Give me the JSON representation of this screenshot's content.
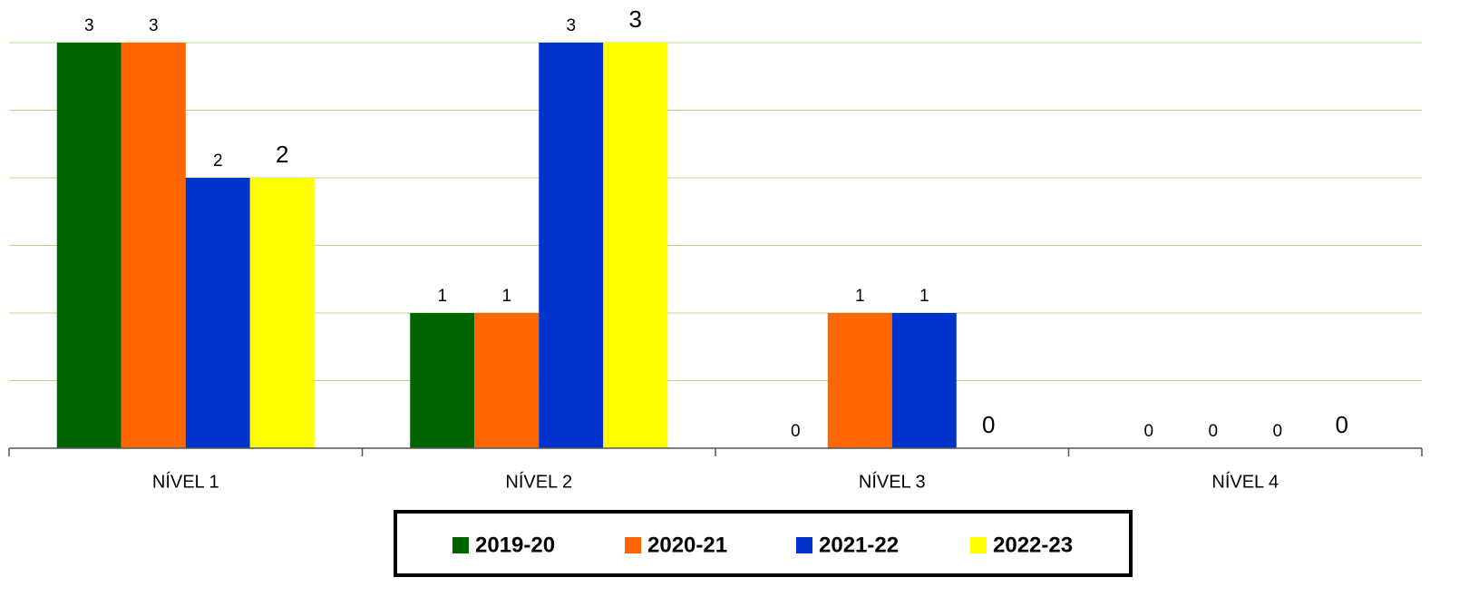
{
  "chart_data": {
    "type": "bar",
    "categories": [
      "NÍVEL 1",
      "NÍVEL 2",
      "NÍVEL 3",
      "NÍVEL 4"
    ],
    "series": [
      {
        "name": "2019-20",
        "color": "#006400",
        "values": [
          3,
          1,
          0,
          0
        ]
      },
      {
        "name": "2020-21",
        "color": "#ff6600",
        "values": [
          3,
          1,
          1,
          0
        ]
      },
      {
        "name": "2021-22",
        "color": "#0033cc",
        "values": [
          2,
          3,
          1,
          0
        ]
      },
      {
        "name": "2022-23",
        "color": "#ffff00",
        "values": [
          2,
          3,
          0,
          0
        ]
      }
    ],
    "ylim": [
      0,
      3
    ],
    "yticks": [
      0,
      0.5,
      1,
      1.5,
      2,
      2.5,
      3
    ],
    "grid": true,
    "legend": "bottom"
  }
}
